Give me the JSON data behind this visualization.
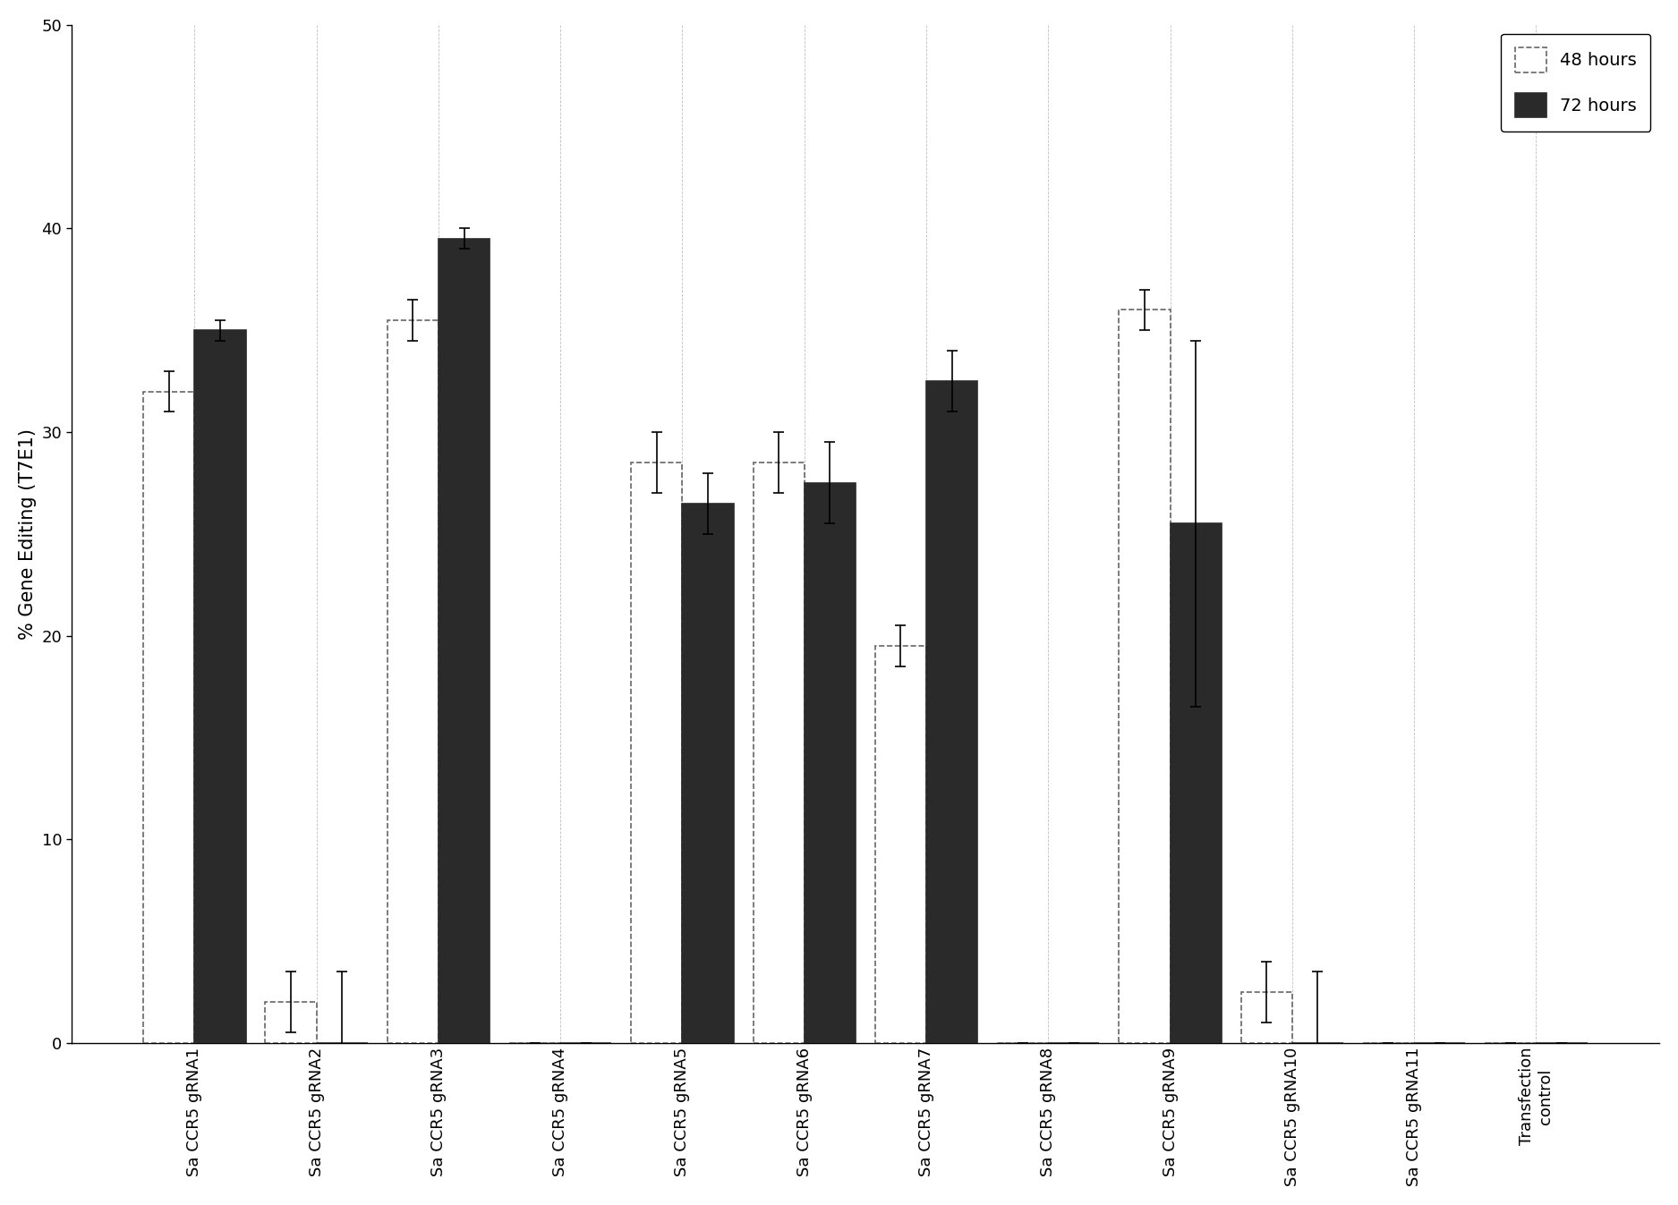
{
  "categories": [
    "Sa CCR5 gRNA1",
    "Sa CCR5 gRNA2",
    "Sa CCR5 gRNA3",
    "Sa CCR5 gRNA4",
    "Sa CCR5 gRNA5",
    "Sa CCR5 gRNA6",
    "Sa CCR5 gRNA7",
    "Sa CCR5 gRNA8",
    "Sa CCR5 gRNA9",
    "Sa CCR5 gRNA10",
    "Sa CCR5 gRNA11",
    "Transfection\ncontrol"
  ],
  "values_48h": [
    32.0,
    2.0,
    35.5,
    0.0,
    28.5,
    28.5,
    19.5,
    0.0,
    36.0,
    2.5,
    0.0,
    0.0
  ],
  "values_72h": [
    35.0,
    0.0,
    39.5,
    0.0,
    26.5,
    27.5,
    32.5,
    0.0,
    25.5,
    0.0,
    0.0,
    0.0
  ],
  "err_48h": [
    1.0,
    1.5,
    1.0,
    0.0,
    1.5,
    1.5,
    1.0,
    0.0,
    1.0,
    1.5,
    0.0,
    0.0
  ],
  "err_72h": [
    0.5,
    3.5,
    0.5,
    0.0,
    1.5,
    2.0,
    1.5,
    0.0,
    9.0,
    3.5,
    0.0,
    0.0
  ],
  "color_48h": "#ffffff",
  "color_72h": "#2a2a2a",
  "edge_color_48h": "#666666",
  "edge_color_72h": "#2a2a2a",
  "ylabel": "% Gene Editing (T7E1)",
  "ylim": [
    0,
    50
  ],
  "yticks": [
    0,
    10,
    20,
    30,
    40,
    50
  ],
  "legend_48h": "48 hours",
  "legend_72h": "72 hours",
  "bar_width": 0.42,
  "tick_fontsize": 13,
  "label_fontsize": 15,
  "legend_fontsize": 14
}
